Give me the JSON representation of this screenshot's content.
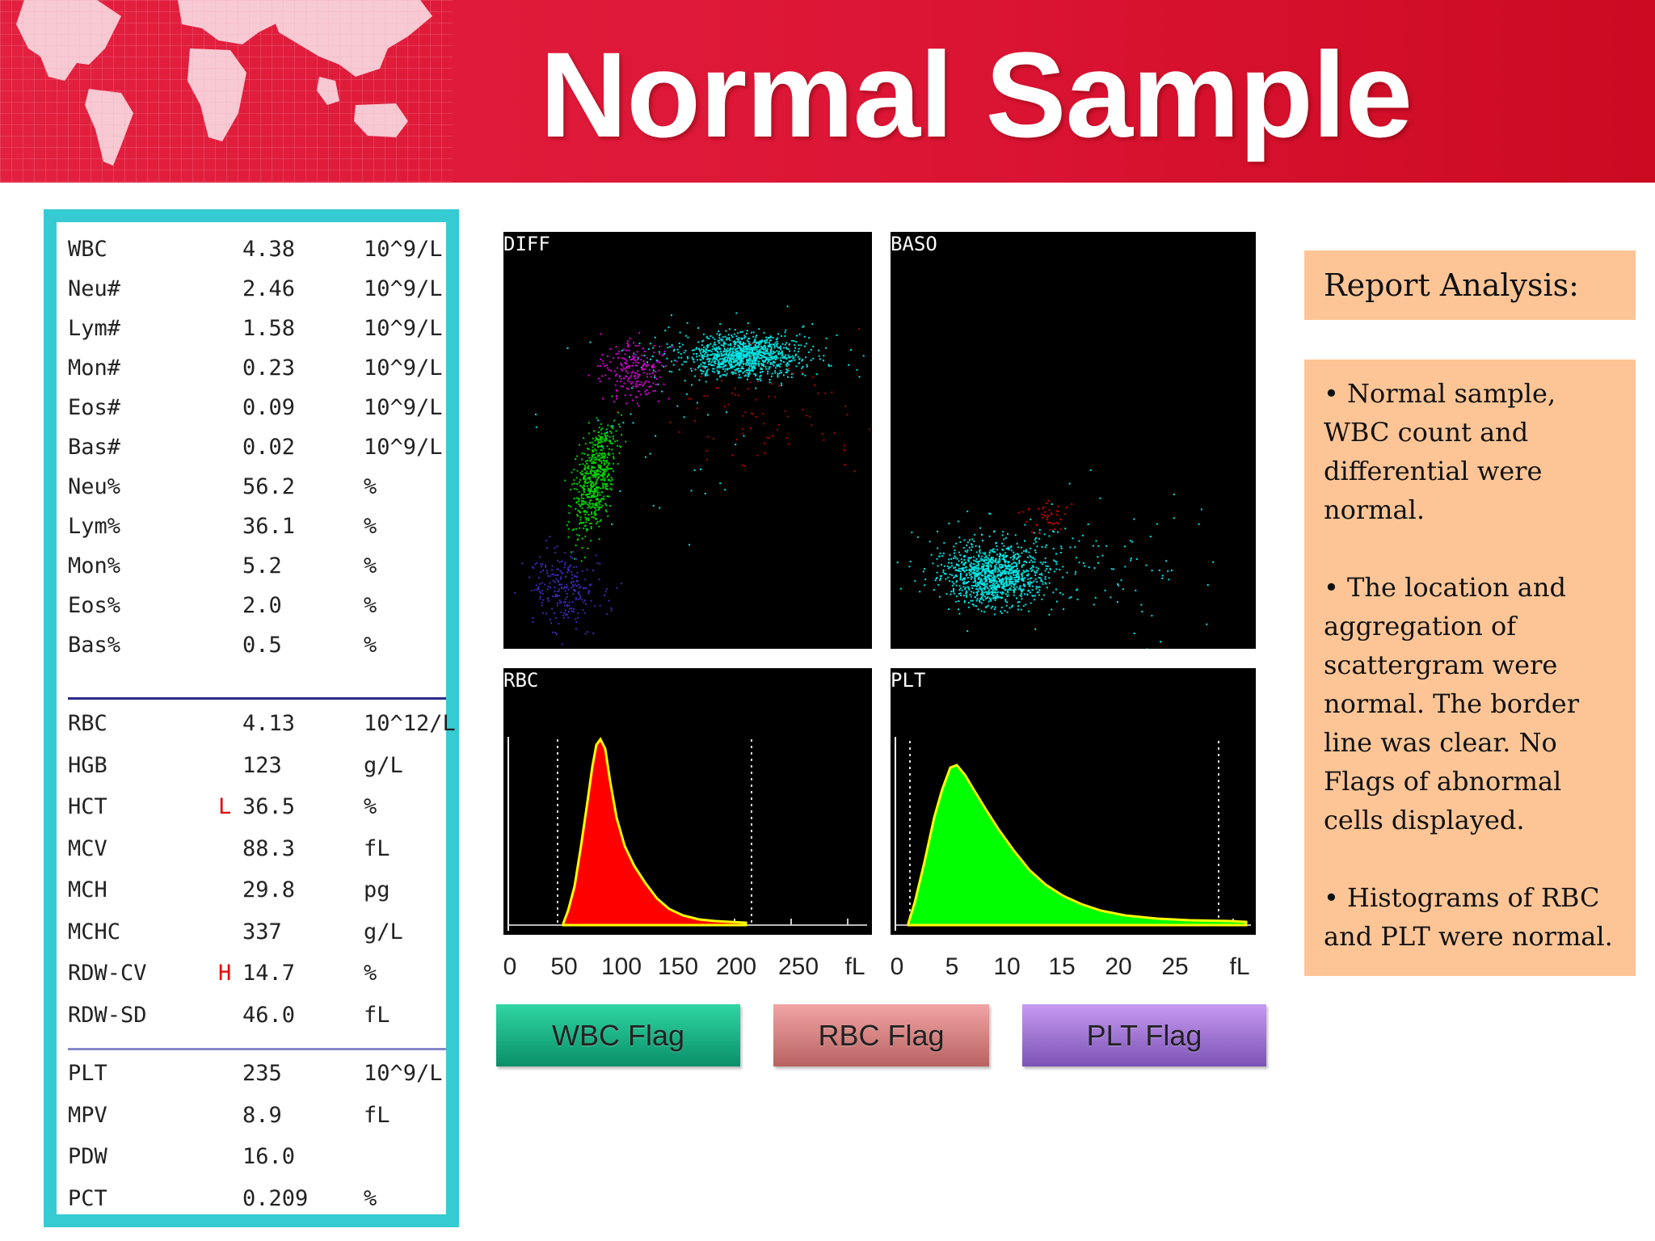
{
  "title": "Normal Sample",
  "results": {
    "wbc_group": [
      {
        "name": "WBC",
        "flag": "",
        "value": "4.38",
        "unit": "10^9/L"
      },
      {
        "name": "Neu#",
        "flag": "",
        "value": "2.46",
        "unit": "10^9/L"
      },
      {
        "name": "Lym#",
        "flag": "",
        "value": "1.58",
        "unit": "10^9/L"
      },
      {
        "name": "Mon#",
        "flag": "",
        "value": "0.23",
        "unit": "10^9/L"
      },
      {
        "name": "Eos#",
        "flag": "",
        "value": "0.09",
        "unit": "10^9/L"
      },
      {
        "name": "Bas#",
        "flag": "",
        "value": "0.02",
        "unit": "10^9/L"
      },
      {
        "name": "Neu%",
        "flag": "",
        "value": "56.2",
        "unit": "%"
      },
      {
        "name": "Lym%",
        "flag": "",
        "value": "36.1",
        "unit": "%"
      },
      {
        "name": "Mon%",
        "flag": "",
        "value": "5.2",
        "unit": "%"
      },
      {
        "name": "Eos%",
        "flag": "",
        "value": "2.0",
        "unit": "%"
      },
      {
        "name": "Bas%",
        "flag": "",
        "value": "0.5",
        "unit": "%"
      }
    ],
    "rbc_group": [
      {
        "name": "RBC",
        "flag": "",
        "value": "4.13",
        "unit": "10^12/L"
      },
      {
        "name": "HGB",
        "flag": "",
        "value": "123",
        "unit": "g/L"
      },
      {
        "name": "HCT",
        "flag": "L",
        "value": "36.5",
        "unit": "%"
      },
      {
        "name": "MCV",
        "flag": "",
        "value": "88.3",
        "unit": "fL"
      },
      {
        "name": "MCH",
        "flag": "",
        "value": "29.8",
        "unit": "pg"
      },
      {
        "name": "MCHC",
        "flag": "",
        "value": "337",
        "unit": "g/L"
      },
      {
        "name": "RDW-CV",
        "flag": "H",
        "value": "14.7",
        "unit": "%"
      },
      {
        "name": "RDW-SD",
        "flag": "",
        "value": "46.0",
        "unit": "fL"
      }
    ],
    "plt_group": [
      {
        "name": "PLT",
        "flag": "",
        "value": "235",
        "unit": "10^9/L"
      },
      {
        "name": "MPV",
        "flag": "",
        "value": "8.9",
        "unit": "fL"
      },
      {
        "name": "PDW",
        "flag": "",
        "value": "16.0",
        "unit": ""
      },
      {
        "name": "PCT",
        "flag": "",
        "value": "0.209",
        "unit": "%"
      }
    ]
  },
  "scattergrams": {
    "diff_label": "DIFF",
    "baso_label": "BASO"
  },
  "histograms": {
    "rbc": {
      "label": "RBC",
      "ticks": [
        "0",
        "50",
        "100",
        "150",
        "200",
        "250"
      ],
      "unit": "fL",
      "color": "#ff0000"
    },
    "plt": {
      "label": "PLT",
      "ticks": [
        "0",
        "5",
        "10",
        "15",
        "20",
        "25"
      ],
      "unit": "fL",
      "color": "#00ff00"
    }
  },
  "flags": {
    "wbc": "WBC Flag",
    "rbc": "RBC Flag",
    "plt": "PLT Flag"
  },
  "analysis": {
    "header": "Report Analysis:",
    "bullets": [
      "• Normal sample, WBC count and differential were normal.",
      "• The location and aggregation of scattergram were normal. The border line was clear. No Flags of abnormal cells displayed.",
      "• Histograms of RBC and PLT were normal."
    ]
  },
  "colors": {
    "banner": "#dc1535",
    "panel_border": "#36cbd2",
    "analysis_bg": "#fdc596"
  }
}
